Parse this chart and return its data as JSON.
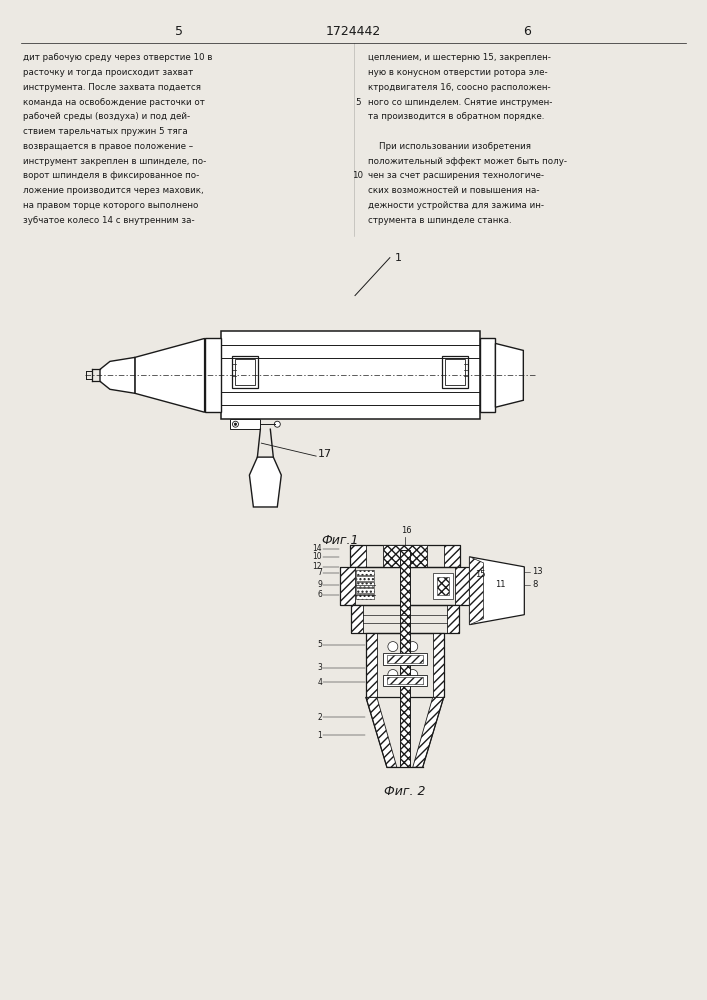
{
  "page_width": 7.07,
  "page_height": 10.0,
  "bg_color": "#ece9e3",
  "text_color": "#1a1a1a",
  "line_color": "#1a1a1a",
  "header": {
    "left_num": "5",
    "center_num": "1724442",
    "right_num": "6"
  },
  "left_text": [
    "дит рабочую среду через отверстие 10 в",
    "расточку и тогда происходит захват",
    "инструмента. После захвата подается",
    "команда на освобождение расточки от",
    "рабочей среды (воздуха) и под дей-",
    "ствием тарельчатых пружин 5 тяга",
    "возвращается в правое положение –",
    "инструмент закреплен в шпинделе, по-",
    "ворот шпинделя в фиксированное по-",
    "ложение производится через маховик,",
    "на правом торце которого выполнено",
    "зубчатое колесо 14 с внутренним за-"
  ],
  "right_text_col1_marker": "5",
  "right_text_col2_marker": "10",
  "right_text": [
    "цеплением, и шестерню 15, закреплен-",
    "ную в конусном отверстии ротора эле-",
    "ктродвигателя 16, соосно расположен-",
    "ного со шпинделем. Снятие инструмен-",
    "та производится в обратном порядке.",
    "",
    "    При использовании изобретения",
    "положительный эффект может быть полу-",
    "чен за счет расширения технологиче-",
    "ских возможностей и повышения на-",
    "дежности устройства для зажима ин-",
    "струмента в шпинделе станка."
  ],
  "fig1_label": "Фиг.1",
  "fig2_label": "Фиг. 2"
}
